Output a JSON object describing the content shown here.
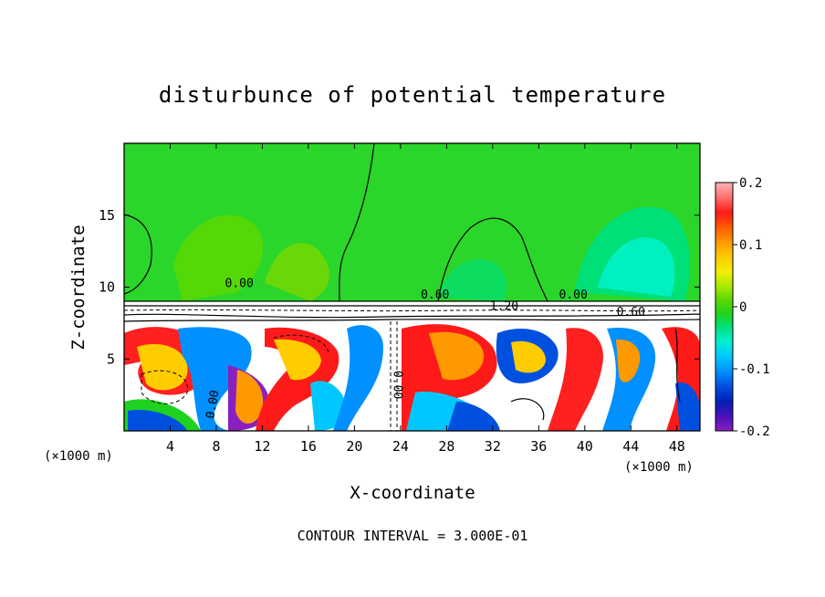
{
  "chart_data": {
    "type": "heatmap",
    "title": "disturbunce of potential temperature",
    "xlabel": "X-coordinate",
    "ylabel": "Z-coordinate",
    "x_unit": "(×1000 m)",
    "x_unit_right": "(×1000 m)",
    "xlim": [
      0,
      50
    ],
    "ylim": [
      0,
      20
    ],
    "x_ticks": [
      "4",
      "8",
      "12",
      "16",
      "20",
      "24",
      "28",
      "32",
      "36",
      "40",
      "44",
      "48"
    ],
    "y_ticks": [
      "5",
      "10",
      "15"
    ],
    "colorbar": {
      "ticks": [
        "0.2",
        "0.1",
        "0",
        "-0.1",
        "-0.2"
      ],
      "range": [
        -0.2,
        0.2
      ],
      "colors": [
        "#ffb3b3",
        "#ff7070",
        "#ff1a1a",
        "#ff5a00",
        "#ff9900",
        "#ffcc00",
        "#f0f000",
        "#a8e800",
        "#5fd800",
        "#1fd21f",
        "#00e078",
        "#00f0d0",
        "#00c8ff",
        "#0090ff",
        "#0050e0",
        "#0020b8",
        "#4a10b8",
        "#8a20c0"
      ]
    },
    "contour_labels": [
      "0.00",
      "0.60",
      "1.20",
      "0.60",
      "0.00",
      "0.00",
      "0.00"
    ],
    "footer": "CONTOUR INTERVAL = 3.000E-01"
  }
}
